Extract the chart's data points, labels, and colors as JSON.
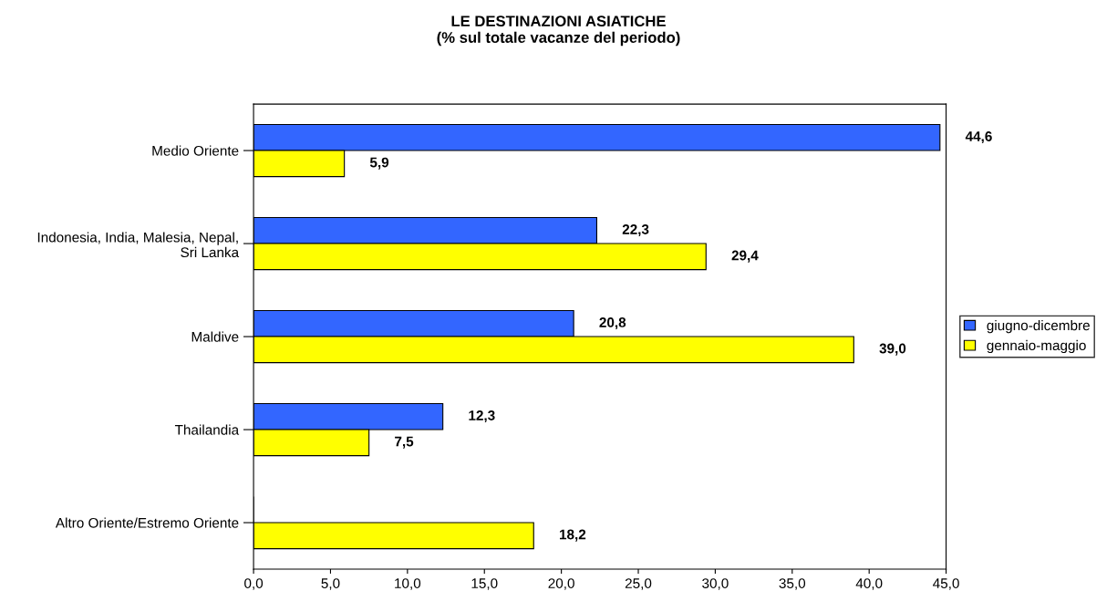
{
  "chart_data": {
    "type": "bar",
    "orientation": "horizontal",
    "title": "LE DESTINAZIONI ASIATICHE\n(% sul totale vacanze del periodo)",
    "categories": [
      "Medio Oriente",
      "Indonesia, India, Malesia, Nepal,\nSri Lanka",
      "Maldive",
      "Thailandia",
      "Altro Oriente/Estremo Oriente"
    ],
    "series": [
      {
        "name": "giugno-dicembre",
        "color": "#3366ff",
        "values": [
          44.6,
          22.3,
          20.8,
          12.3,
          0
        ],
        "value_labels": [
          "44,6",
          "22,3",
          "20,8",
          "12,3",
          null
        ]
      },
      {
        "name": "gennaio-maggio",
        "color": "#ffff00",
        "values": [
          5.9,
          29.4,
          39.0,
          7.5,
          18.2
        ],
        "value_labels": [
          "5,9",
          "29,4",
          "39,0",
          "7,5",
          "18,2"
        ]
      }
    ],
    "xlim": [
      0,
      45
    ],
    "xticks": [
      {
        "value": 0,
        "label": "0,0"
      },
      {
        "value": 5,
        "label": "5,0"
      },
      {
        "value": 10,
        "label": "10,0"
      },
      {
        "value": 15,
        "label": "15,0"
      },
      {
        "value": 20,
        "label": "20,0"
      },
      {
        "value": 25,
        "label": "25,0"
      },
      {
        "value": 30,
        "label": "30,0"
      },
      {
        "value": 35,
        "label": "35,0"
      },
      {
        "value": 40,
        "label": "40,0"
      },
      {
        "value": 45,
        "label": "45,0"
      }
    ],
    "grid": false,
    "legend": "right"
  }
}
